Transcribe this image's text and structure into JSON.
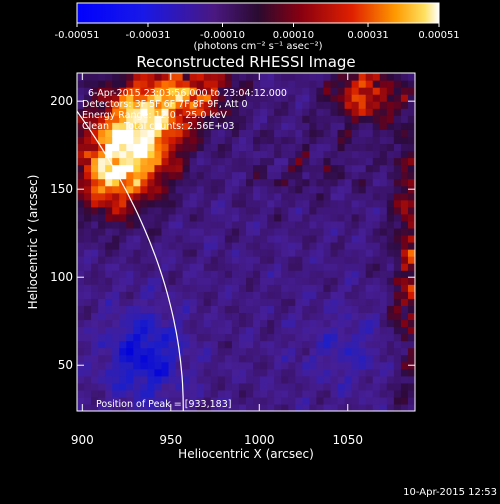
{
  "colorbar": {
    "ticks": [
      "-0.00051",
      "-0.00031",
      "-0.00010",
      "0.00010",
      "0.00031",
      "0.00051"
    ],
    "tick_values": [
      -0.00051,
      -0.00031,
      -0.0001,
      0.0001,
      0.00031,
      0.00051
    ],
    "range": [
      -0.00051,
      0.00051
    ],
    "units": "(photons cm⁻² s⁻¹ asec⁻²)"
  },
  "chart_data": {
    "type": "heatmap",
    "title": "Reconstructed RHESSI Image",
    "xlabel": "Heliocentric X (arcsec)",
    "ylabel": "Heliocentric Y (arcsec)",
    "xlim": [
      897,
      1088
    ],
    "ylim": [
      24,
      216
    ],
    "xticks": [
      900,
      950,
      1000,
      1050
    ],
    "yticks": [
      50,
      100,
      150,
      200
    ],
    "colormap": "blue-purple-red-yellow-white",
    "annotations": [
      "6-Apr-2015 23:03:56.000 to 23:04:12.000",
      "Detectors: 3F 5F 6F 7F 8F 9F, Att 0",
      "Energy Range: 12.0 - 25.0 keV",
      "Clean     Total counts: 2.56E+03"
    ],
    "peak_label": "Position of Peak = [933,183]",
    "peak": [
      933,
      183
    ],
    "limb_color": "#ffffff"
  },
  "footer": {
    "timestamp": "10-Apr-2015 12:53"
  }
}
